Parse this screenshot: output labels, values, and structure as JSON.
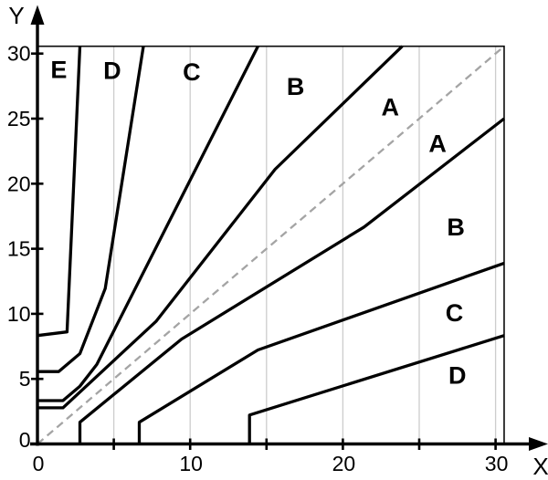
{
  "colors": {
    "axis": "#000000",
    "boundary": "#000000",
    "diagonal_dashed": "#a4a4a4",
    "gridline": "#cdcdcd",
    "border": "#0a0a0a",
    "text": "#000000",
    "background": "#ffffff"
  },
  "chart_data": {
    "type": "line",
    "title": "",
    "xlabel": "X",
    "ylabel": "Y",
    "xlim": [
      0,
      30.56
    ],
    "ylim": [
      0,
      30.56
    ],
    "x_ticks": [
      5,
      10,
      15,
      20,
      25,
      30
    ],
    "y_ticks": [
      5,
      10,
      15,
      20,
      25,
      30
    ],
    "x_tick_labels": [
      {
        "v": 0,
        "t": "0"
      },
      {
        "v": 10,
        "t": "10"
      },
      {
        "v": 20,
        "t": "20"
      },
      {
        "v": 30,
        "t": "30"
      }
    ],
    "y_tick_labels": [
      {
        "v": 0,
        "t": "0"
      },
      {
        "v": 5,
        "t": "5"
      },
      {
        "v": 10,
        "t": "10"
      },
      {
        "v": 15,
        "t": "15"
      },
      {
        "v": 20,
        "t": "20"
      },
      {
        "v": 25,
        "t": "25"
      },
      {
        "v": 30,
        "t": "30"
      }
    ],
    "vertical_gridlines_at": [
      5,
      10,
      15,
      20,
      25,
      30
    ],
    "horizontal_gridlines": false,
    "legend": "none",
    "series": [
      {
        "name": "upper-E-boundary",
        "style": "solid",
        "points": [
          [
            0,
            8.33
          ],
          [
            1.94,
            8.61
          ],
          [
            2.78,
            30.56
          ]
        ]
      },
      {
        "name": "upper-D-boundary",
        "style": "solid",
        "points": [
          [
            0,
            5.56
          ],
          [
            1.39,
            5.56
          ],
          [
            2.78,
            6.94
          ],
          [
            4.44,
            11.94
          ],
          [
            6.94,
            30.56
          ]
        ]
      },
      {
        "name": "upper-C-boundary",
        "style": "solid",
        "points": [
          [
            0,
            3.33
          ],
          [
            1.67,
            3.33
          ],
          [
            2.78,
            4.44
          ],
          [
            3.89,
            6.11
          ],
          [
            14.44,
            30.56
          ]
        ]
      },
      {
        "name": "upper-B-boundary",
        "style": "solid",
        "points": [
          [
            0,
            2.78
          ],
          [
            1.67,
            2.78
          ],
          [
            7.78,
            9.44
          ],
          [
            15.56,
            21.11
          ],
          [
            23.89,
            30.56
          ]
        ]
      },
      {
        "name": "lower-B-boundary",
        "style": "solid",
        "points": [
          [
            2.78,
            0
          ],
          [
            2.78,
            1.67
          ],
          [
            9.44,
            8.06
          ],
          [
            21.39,
            16.67
          ],
          [
            30.56,
            25.0
          ]
        ]
      },
      {
        "name": "lower-C-boundary",
        "style": "solid",
        "points": [
          [
            6.67,
            0
          ],
          [
            6.67,
            1.67
          ],
          [
            14.44,
            7.22
          ],
          [
            30.56,
            13.89
          ]
        ]
      },
      {
        "name": "lower-D-boundary",
        "style": "solid",
        "points": [
          [
            13.89,
            0
          ],
          [
            13.89,
            2.22
          ],
          [
            30.56,
            8.33
          ]
        ]
      },
      {
        "name": "identity-diagonal",
        "style": "dashed",
        "points": [
          [
            0,
            0
          ],
          [
            30.56,
            30.56
          ]
        ]
      }
    ],
    "zone_labels": [
      {
        "id": "zone-E-upper",
        "text": "E",
        "x": 1.4,
        "y": 28.8
      },
      {
        "id": "zone-D-upper",
        "text": "D",
        "x": 4.9,
        "y": 28.7
      },
      {
        "id": "zone-C-upper",
        "text": "C",
        "x": 10.1,
        "y": 28.6
      },
      {
        "id": "zone-B-upper",
        "text": "B",
        "x": 16.9,
        "y": 27.5
      },
      {
        "id": "zone-A-upper",
        "text": "A",
        "x": 23.1,
        "y": 25.9
      },
      {
        "id": "zone-A-lower",
        "text": "A",
        "x": 26.2,
        "y": 23.1
      },
      {
        "id": "zone-B-lower",
        "text": "B",
        "x": 27.4,
        "y": 16.7
      },
      {
        "id": "zone-C-lower",
        "text": "C",
        "x": 27.3,
        "y": 10.1
      },
      {
        "id": "zone-D-lower",
        "text": "D",
        "x": 27.5,
        "y": 5.3
      }
    ]
  }
}
